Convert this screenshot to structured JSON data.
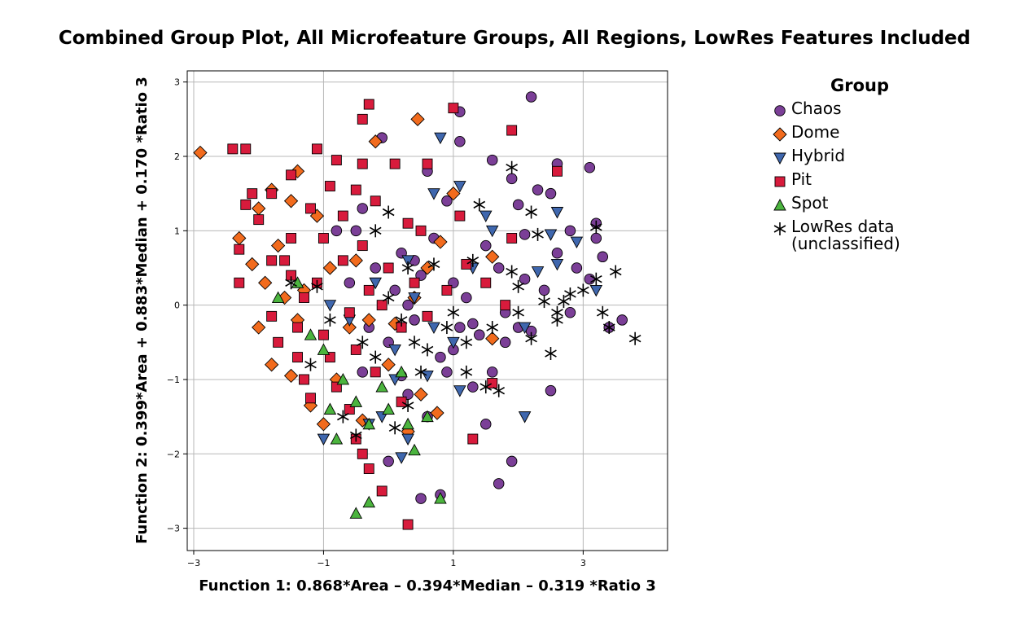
{
  "chart_data": {
    "type": "scatter",
    "title": "Combined Group Plot, All Microfeature Groups, All Regions, LowRes Features Included",
    "xlabel": "Function 1: 0.868*Area – 0.394*Median – 0.319 *Ratio 3",
    "ylabel": "Function 2: 0.399*Area + 0.883*Median + 0.170 *Ratio 3",
    "xlim": [
      -3.1,
      4.3
    ],
    "ylim": [
      -3.3,
      3.15
    ],
    "x_ticks": [
      -3,
      -1,
      1,
      3
    ],
    "y_ticks": [
      3,
      2,
      1,
      0,
      -1,
      -2,
      -3
    ],
    "grid": true,
    "legend": {
      "title": "Group",
      "position": "right"
    },
    "series": [
      {
        "name": "Chaos",
        "marker": "circle",
        "color": "#7b3f97",
        "points": [
          [
            2.2,
            2.8
          ],
          [
            1.1,
            2.6
          ],
          [
            -0.1,
            2.25
          ],
          [
            1.1,
            2.2
          ],
          [
            2.6,
            1.9
          ],
          [
            3.1,
            1.85
          ],
          [
            1.6,
            1.95
          ],
          [
            0.6,
            1.8
          ],
          [
            1.9,
            1.7
          ],
          [
            2.3,
            1.55
          ],
          [
            2.5,
            1.5
          ],
          [
            0.9,
            1.4
          ],
          [
            2.0,
            1.35
          ],
          [
            -0.4,
            1.3
          ],
          [
            3.2,
            1.1
          ],
          [
            2.8,
            1.0
          ],
          [
            2.1,
            0.95
          ],
          [
            3.2,
            0.9
          ],
          [
            0.4,
            0.6
          ],
          [
            2.6,
            0.7
          ],
          [
            3.3,
            0.65
          ],
          [
            2.9,
            0.5
          ],
          [
            1.7,
            0.5
          ],
          [
            2.1,
            0.35
          ],
          [
            3.1,
            0.35
          ],
          [
            0.3,
            0.0
          ],
          [
            2.8,
            -0.1
          ],
          [
            3.6,
            -0.2
          ],
          [
            3.4,
            -0.3
          ],
          [
            1.3,
            -0.25
          ],
          [
            1.8,
            -0.5
          ],
          [
            2.2,
            -0.35
          ],
          [
            0.8,
            -0.7
          ],
          [
            1.6,
            -0.9
          ],
          [
            1.3,
            -1.1
          ],
          [
            0.3,
            -1.2
          ],
          [
            2.5,
            -1.15
          ],
          [
            0.6,
            -1.5
          ],
          [
            1.5,
            -1.6
          ],
          [
            1.9,
            -2.1
          ],
          [
            1.7,
            -2.4
          ],
          [
            0.0,
            -2.1
          ],
          [
            0.5,
            -2.6
          ],
          [
            0.8,
            -2.55
          ],
          [
            -0.5,
            1.0
          ],
          [
            -0.8,
            1.0
          ],
          [
            0.2,
            0.7
          ],
          [
            0.5,
            0.4
          ],
          [
            1.0,
            0.3
          ],
          [
            1.2,
            0.1
          ],
          [
            1.4,
            -0.4
          ],
          [
            1.0,
            -0.6
          ],
          [
            0.0,
            -0.5
          ],
          [
            -0.3,
            -0.3
          ],
          [
            0.1,
            0.2
          ],
          [
            -0.6,
            0.3
          ],
          [
            0.9,
            -0.9
          ],
          [
            1.5,
            0.8
          ],
          [
            2.4,
            0.2
          ],
          [
            1.8,
            -0.1
          ],
          [
            0.7,
            0.9
          ],
          [
            -0.2,
            0.5
          ],
          [
            0.4,
            -0.2
          ],
          [
            1.1,
            -0.3
          ],
          [
            2.0,
            -0.3
          ],
          [
            -0.4,
            -0.9
          ],
          [
            0.2,
            -0.95
          ]
        ]
      },
      {
        "name": "Dome",
        "marker": "diamond",
        "color": "#f26b1d",
        "points": [
          [
            -2.9,
            2.05
          ],
          [
            0.45,
            2.5
          ],
          [
            -0.2,
            2.2
          ],
          [
            -1.4,
            1.8
          ],
          [
            -1.8,
            1.55
          ],
          [
            -2.3,
            0.9
          ],
          [
            -2.0,
            1.3
          ],
          [
            -2.1,
            0.55
          ],
          [
            -1.7,
            0.8
          ],
          [
            -2.0,
            -0.3
          ],
          [
            -1.8,
            -0.8
          ],
          [
            -1.5,
            -0.95
          ],
          [
            -1.2,
            -1.35
          ],
          [
            -1.0,
            -1.6
          ],
          [
            0.6,
            0.5
          ],
          [
            1.0,
            1.5
          ],
          [
            0.8,
            0.85
          ],
          [
            1.6,
            0.65
          ],
          [
            1.6,
            -0.45
          ],
          [
            0.75,
            -1.45
          ],
          [
            0.3,
            -1.7
          ],
          [
            -0.4,
            -1.55
          ],
          [
            -1.3,
            0.2
          ],
          [
            -1.6,
            0.1
          ],
          [
            -0.6,
            -0.3
          ],
          [
            0.1,
            -0.25
          ],
          [
            -0.9,
            0.5
          ],
          [
            -1.1,
            1.2
          ],
          [
            -1.5,
            1.4
          ],
          [
            -0.5,
            0.6
          ],
          [
            0.4,
            0.1
          ],
          [
            -0.3,
            -0.2
          ],
          [
            -1.9,
            0.3
          ],
          [
            -1.4,
            -0.2
          ],
          [
            -0.8,
            -1.0
          ],
          [
            0.0,
            -0.8
          ],
          [
            0.5,
            -1.2
          ]
        ]
      },
      {
        "name": "Hybrid",
        "marker": "triangle-down",
        "color": "#3f67ae",
        "points": [
          [
            0.8,
            2.25
          ],
          [
            1.1,
            1.6
          ],
          [
            0.7,
            1.5
          ],
          [
            1.5,
            1.2
          ],
          [
            1.6,
            1.0
          ],
          [
            2.6,
            1.25
          ],
          [
            2.5,
            0.95
          ],
          [
            2.9,
            0.85
          ],
          [
            2.6,
            0.55
          ],
          [
            2.3,
            0.45
          ],
          [
            1.3,
            0.5
          ],
          [
            2.1,
            -0.3
          ],
          [
            3.2,
            0.2
          ],
          [
            1.1,
            -1.15
          ],
          [
            2.1,
            -1.5
          ],
          [
            0.1,
            -1.0
          ],
          [
            -0.1,
            -1.5
          ],
          [
            0.6,
            -0.95
          ],
          [
            -0.3,
            -1.6
          ],
          [
            0.3,
            -1.8
          ],
          [
            -1.0,
            -1.8
          ],
          [
            0.2,
            -2.05
          ],
          [
            0.4,
            0.1
          ],
          [
            -0.2,
            0.3
          ],
          [
            0.7,
            -0.3
          ],
          [
            -0.6,
            -0.2
          ],
          [
            0.3,
            0.6
          ],
          [
            1.0,
            -0.5
          ],
          [
            -0.9,
            0.0
          ],
          [
            0.1,
            -0.6
          ]
        ]
      },
      {
        "name": "Pit",
        "marker": "square",
        "color": "#d81b3c",
        "points": [
          [
            -0.3,
            2.7
          ],
          [
            -0.4,
            2.5
          ],
          [
            1.0,
            2.65
          ],
          [
            1.9,
            2.35
          ],
          [
            -2.4,
            2.1
          ],
          [
            -2.2,
            2.1
          ],
          [
            -1.1,
            2.1
          ],
          [
            -0.8,
            1.95
          ],
          [
            -0.4,
            1.9
          ],
          [
            0.1,
            1.9
          ],
          [
            -0.5,
            1.55
          ],
          [
            -1.5,
            1.75
          ],
          [
            -1.8,
            1.5
          ],
          [
            -2.1,
            1.5
          ],
          [
            -2.2,
            1.35
          ],
          [
            -2.0,
            1.15
          ],
          [
            -2.3,
            0.75
          ],
          [
            -1.5,
            0.9
          ],
          [
            -1.8,
            0.6
          ],
          [
            -2.3,
            0.3
          ],
          [
            -1.5,
            0.4
          ],
          [
            -1.3,
            0.1
          ],
          [
            -1.8,
            -0.15
          ],
          [
            -1.7,
            -0.5
          ],
          [
            -1.4,
            -0.7
          ],
          [
            -1.3,
            -1.0
          ],
          [
            -1.2,
            -1.25
          ],
          [
            -0.8,
            -1.1
          ],
          [
            -0.6,
            -1.4
          ],
          [
            -0.5,
            -1.8
          ],
          [
            -0.4,
            -2.0
          ],
          [
            -0.3,
            -2.2
          ],
          [
            -0.1,
            -2.5
          ],
          [
            0.3,
            -2.95
          ],
          [
            1.3,
            -1.8
          ],
          [
            1.6,
            -1.05
          ],
          [
            2.6,
            1.8
          ],
          [
            1.1,
            1.2
          ],
          [
            1.9,
            0.9
          ],
          [
            1.5,
            0.3
          ],
          [
            1.2,
            0.55
          ],
          [
            0.9,
            0.2
          ],
          [
            0.3,
            1.1
          ],
          [
            -0.2,
            1.4
          ],
          [
            0.5,
            1.0
          ],
          [
            -0.9,
            1.6
          ],
          [
            -1.0,
            0.9
          ],
          [
            -0.7,
            0.6
          ],
          [
            -0.3,
            0.2
          ],
          [
            -0.6,
            -0.1
          ],
          [
            -1.0,
            -0.4
          ],
          [
            -0.5,
            -0.6
          ],
          [
            -0.2,
            -0.9
          ],
          [
            0.2,
            -0.3
          ],
          [
            0.4,
            0.3
          ],
          [
            0.6,
            -0.15
          ],
          [
            -1.6,
            0.6
          ],
          [
            -1.2,
            1.3
          ],
          [
            -0.9,
            -0.7
          ],
          [
            -0.4,
            0.8
          ],
          [
            0.0,
            0.5
          ],
          [
            -0.7,
            1.2
          ],
          [
            -1.4,
            -0.3
          ],
          [
            0.2,
            -1.3
          ],
          [
            -0.1,
            0.0
          ],
          [
            -1.1,
            0.3
          ],
          [
            0.6,
            1.9
          ],
          [
            1.8,
            0.0
          ]
        ]
      },
      {
        "name": "Spot",
        "marker": "triangle-up",
        "color": "#4bb43e",
        "points": [
          [
            -1.4,
            0.3
          ],
          [
            -1.2,
            -0.4
          ],
          [
            -1.0,
            -0.6
          ],
          [
            -0.9,
            -1.4
          ],
          [
            -0.8,
            -1.8
          ],
          [
            -0.5,
            -1.3
          ],
          [
            -0.3,
            -1.6
          ],
          [
            -0.5,
            -2.8
          ],
          [
            -0.3,
            -2.65
          ],
          [
            0.3,
            -1.6
          ],
          [
            0.4,
            -1.95
          ],
          [
            0.6,
            -1.5
          ],
          [
            0.8,
            -2.6
          ],
          [
            0.2,
            -0.9
          ],
          [
            -0.1,
            -1.1
          ],
          [
            -0.7,
            -1.0
          ],
          [
            -1.7,
            0.1
          ],
          [
            0.0,
            -1.4
          ]
        ]
      },
      {
        "name": "LowRes data (unclassified)",
        "marker": "star",
        "color": "#000000",
        "points": [
          [
            1.9,
            1.85
          ],
          [
            1.4,
            1.35
          ],
          [
            2.2,
            1.25
          ],
          [
            2.3,
            0.95
          ],
          [
            1.3,
            0.6
          ],
          [
            1.9,
            0.45
          ],
          [
            3.2,
            1.05
          ],
          [
            3.2,
            0.35
          ],
          [
            3.5,
            0.45
          ],
          [
            3.0,
            0.2
          ],
          [
            2.8,
            0.15
          ],
          [
            2.0,
            0.25
          ],
          [
            2.4,
            0.05
          ],
          [
            2.0,
            -0.1
          ],
          [
            2.6,
            -0.1
          ],
          [
            2.6,
            -0.2
          ],
          [
            3.4,
            -0.3
          ],
          [
            3.8,
            -0.45
          ],
          [
            3.3,
            -0.1
          ],
          [
            2.5,
            -0.65
          ],
          [
            1.2,
            -0.5
          ],
          [
            1.5,
            -1.1
          ],
          [
            1.7,
            -1.15
          ],
          [
            1.2,
            -0.9
          ],
          [
            0.9,
            -0.3
          ],
          [
            0.6,
            -0.6
          ],
          [
            0.2,
            -0.2
          ],
          [
            0.5,
            -0.9
          ],
          [
            0.3,
            -1.35
          ],
          [
            0.1,
            -1.65
          ],
          [
            0.0,
            1.25
          ],
          [
            -0.2,
            1.0
          ],
          [
            -1.5,
            0.3
          ],
          [
            -1.1,
            0.25
          ],
          [
            -0.9,
            -0.2
          ],
          [
            -1.2,
            -0.8
          ],
          [
            -0.7,
            -1.5
          ],
          [
            -0.5,
            -1.75
          ],
          [
            0.3,
            0.5
          ],
          [
            0.7,
            0.55
          ],
          [
            1.0,
            -0.1
          ],
          [
            1.6,
            -0.3
          ],
          [
            2.2,
            -0.45
          ],
          [
            2.7,
            0.05
          ],
          [
            -0.4,
            -0.5
          ],
          [
            -0.2,
            -0.7
          ],
          [
            0.0,
            0.1
          ],
          [
            0.4,
            -0.5
          ]
        ]
      }
    ]
  }
}
